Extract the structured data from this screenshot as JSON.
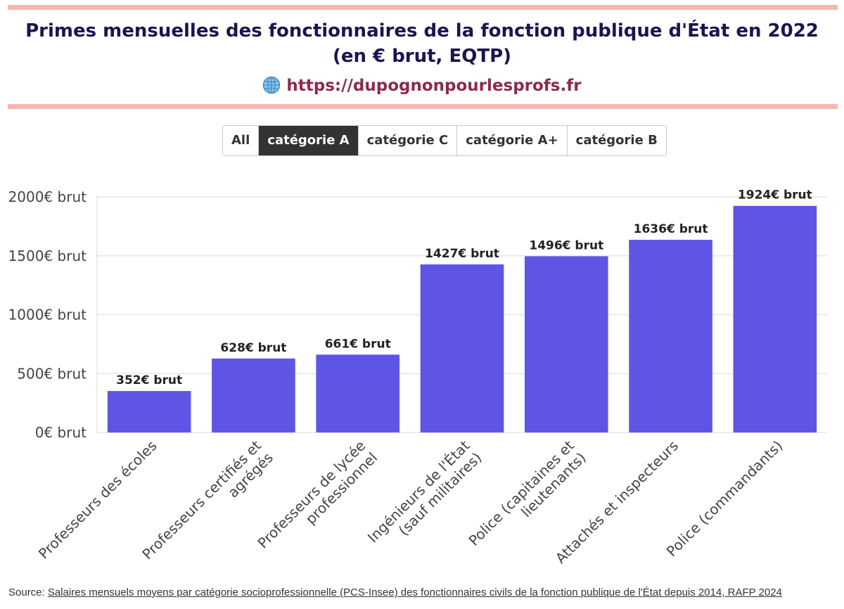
{
  "header": {
    "title": "Primes mensuelles des fonctionnaires de la fonction publique d'État en 2022 (en € brut, EQTP)",
    "site_link": "https://dupognonpourlesprofs.fr",
    "rule_color": "#f3b8b0",
    "title_color": "#1b1450",
    "link_color": "#8b2a4e",
    "icon": "globe-icon"
  },
  "filters": {
    "options": [
      "All",
      "catégorie A",
      "catégorie C",
      "catégorie A+",
      "catégorie B"
    ],
    "selected": "catégorie A"
  },
  "chart_data": {
    "type": "bar",
    "categories": [
      "Professeurs des écoles",
      "Professeurs certifiés et agrégés",
      "Professeurs de lycée professionnel",
      "Ingénieurs de l'État (sauf militaires)",
      "Police (capitaines et lieutenants)",
      "Attachés et inspecteurs",
      "Police (commandants)"
    ],
    "values": [
      352,
      628,
      661,
      1427,
      1496,
      1636,
      1924
    ],
    "data_labels": [
      "352€ brut",
      "628€ brut",
      "661€ brut",
      "1427€ brut",
      "1496€ brut",
      "1636€ brut",
      "1924€ brut"
    ],
    "y_ticks": [
      0,
      500,
      1000,
      1500,
      2000
    ],
    "y_tick_labels": [
      "0€ brut",
      "500€ brut",
      "1000€ brut",
      "1500€ brut",
      "2000€ brut"
    ],
    "ylim": [
      0,
      2020
    ],
    "bar_color": "#5f55e4",
    "grid": true
  },
  "footer": {
    "source_prefix": "Source: ",
    "source_link": "Salaires mensuels moyens par catégorie socioprofessionnelle (PCS-Insee) des fonctionnaires civils de la fonction publique de l'État depuis 2014, RAFP 2024"
  }
}
